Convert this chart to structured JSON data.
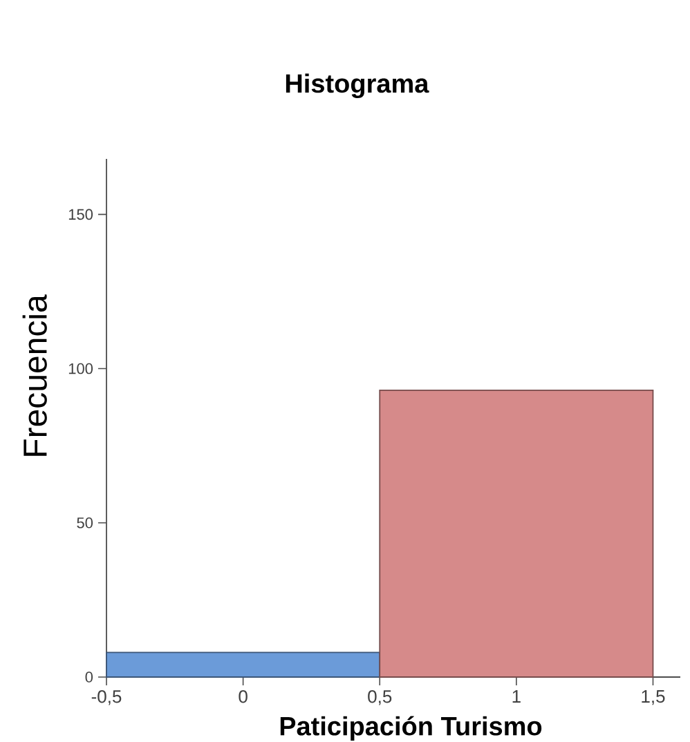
{
  "chart_data": {
    "type": "histogram",
    "title": "Histograma",
    "xlabel": "Paticipación Turismo",
    "ylabel": "Frecuencia",
    "bins": [
      -0.5,
      0.5,
      1.5
    ],
    "values": [
      8,
      93
    ],
    "colors": [
      "#6b9bd9",
      "#d68a8a"
    ],
    "xlim": [
      -0.5,
      1.6
    ],
    "ylim": [
      0,
      168
    ],
    "xticks": [
      {
        "value": -0.5,
        "label": "-0,5"
      },
      0,
      {
        "value": 0.5,
        "label": "0,5"
      },
      1,
      {
        "value": 1.5,
        "label": "1,5"
      }
    ],
    "yticks": [
      0,
      50,
      100,
      150
    ]
  }
}
